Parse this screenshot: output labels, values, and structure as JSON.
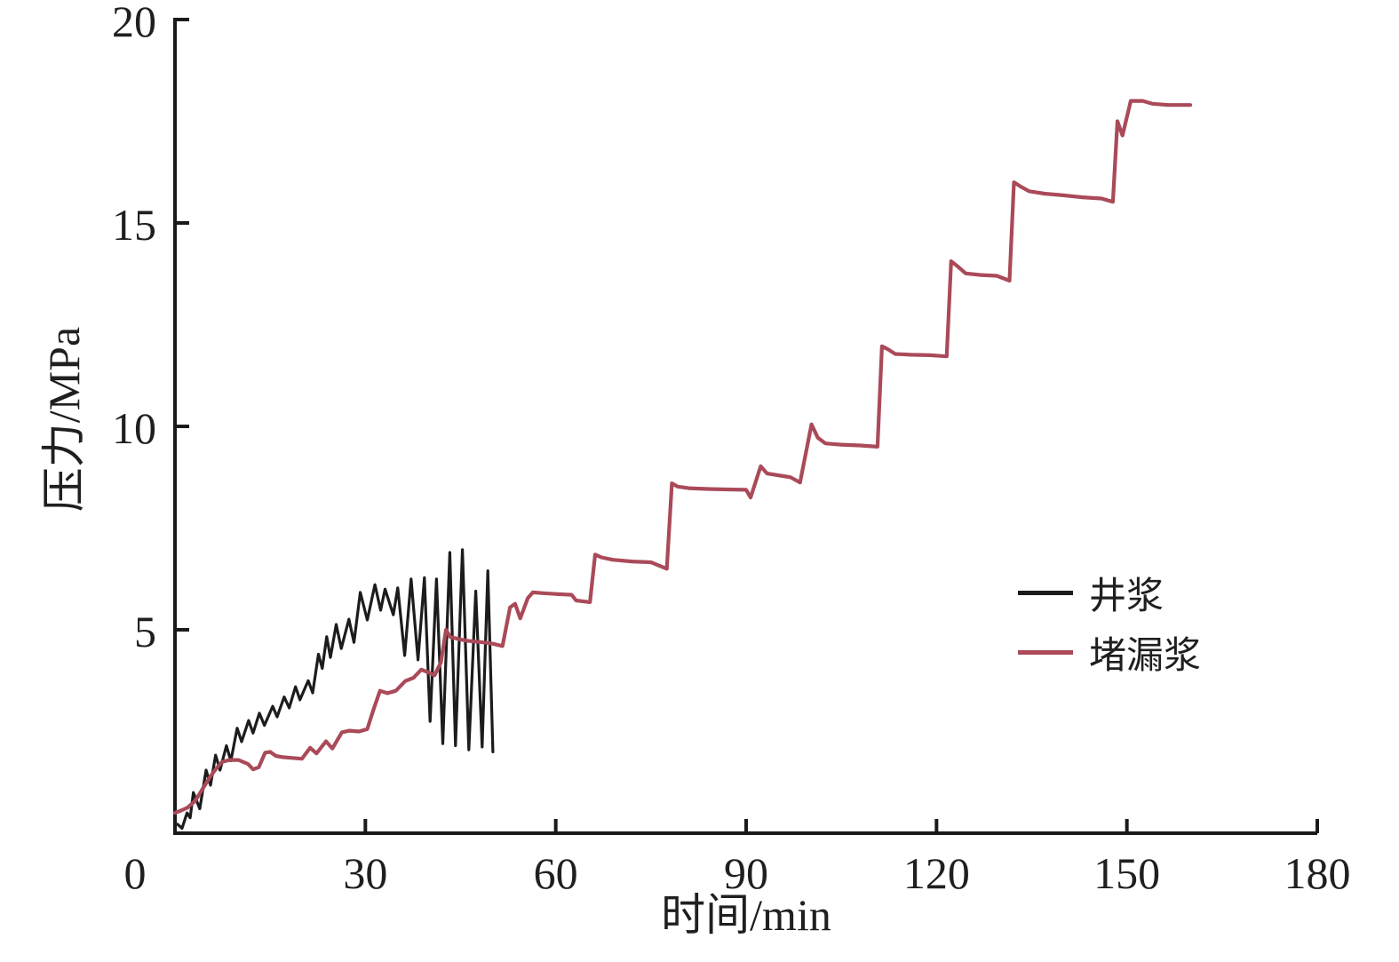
{
  "chart_data": {
    "type": "line",
    "title": "",
    "xlabel": "时间/min",
    "ylabel": "压力/MPa",
    "xlim": [
      0,
      180
    ],
    "ylim": [
      0,
      20
    ],
    "xticks": [
      0,
      30,
      60,
      90,
      120,
      150,
      180
    ],
    "yticks": [
      5,
      10,
      15,
      20
    ],
    "grid": false,
    "axis_color": "#1a1a1a",
    "legend_position": "right-middle",
    "series": [
      {
        "name": "井浆",
        "color": "#1c1c1c",
        "width": 3.2,
        "points": [
          [
            0.4,
            0.22
          ],
          [
            1.1,
            0.12
          ],
          [
            1.9,
            0.5
          ],
          [
            2.4,
            0.38
          ],
          [
            2.9,
            1.0
          ],
          [
            3.9,
            0.6
          ],
          [
            4.9,
            1.55
          ],
          [
            5.6,
            1.18
          ],
          [
            6.4,
            1.92
          ],
          [
            7.1,
            1.55
          ],
          [
            8.1,
            2.15
          ],
          [
            8.8,
            1.78
          ],
          [
            9.8,
            2.58
          ],
          [
            10.5,
            2.25
          ],
          [
            11.6,
            2.77
          ],
          [
            12.3,
            2.46
          ],
          [
            13.3,
            2.95
          ],
          [
            14.1,
            2.65
          ],
          [
            15.4,
            3.12
          ],
          [
            16.1,
            2.86
          ],
          [
            17.2,
            3.35
          ],
          [
            18.0,
            3.08
          ],
          [
            19.0,
            3.6
          ],
          [
            19.7,
            3.28
          ],
          [
            21.0,
            3.75
          ],
          [
            21.7,
            3.45
          ],
          [
            22.6,
            4.4
          ],
          [
            23.2,
            4.05
          ],
          [
            23.9,
            4.83
          ],
          [
            24.5,
            4.32
          ],
          [
            25.4,
            5.13
          ],
          [
            26.2,
            4.54
          ],
          [
            27.4,
            5.26
          ],
          [
            28.2,
            4.69
          ],
          [
            29.2,
            5.92
          ],
          [
            30.3,
            5.24
          ],
          [
            31.5,
            6.11
          ],
          [
            32.4,
            5.48
          ],
          [
            33.1,
            6.0
          ],
          [
            34.4,
            5.37
          ],
          [
            35.1,
            6.03
          ],
          [
            36.2,
            4.37
          ],
          [
            37.2,
            6.25
          ],
          [
            38.3,
            4.26
          ],
          [
            39.3,
            6.28
          ],
          [
            40.2,
            2.75
          ],
          [
            41.2,
            6.25
          ],
          [
            42.2,
            2.2
          ],
          [
            43.3,
            6.9
          ],
          [
            44.2,
            2.15
          ],
          [
            45.3,
            6.97
          ],
          [
            46.3,
            2.05
          ],
          [
            47.4,
            5.95
          ],
          [
            48.4,
            2.12
          ],
          [
            49.3,
            6.45
          ],
          [
            50.1,
            2.0
          ]
        ]
      },
      {
        "name": "堵漏浆",
        "color": "#aa4a59",
        "width": 4.2,
        "points": [
          [
            0,
            0.5
          ],
          [
            1,
            0.56
          ],
          [
            2,
            0.63
          ],
          [
            3.2,
            0.8
          ],
          [
            4.2,
            1.05
          ],
          [
            5.3,
            1.33
          ],
          [
            6.3,
            1.55
          ],
          [
            7.4,
            1.75
          ],
          [
            8.5,
            1.8
          ],
          [
            10,
            1.8
          ],
          [
            11.5,
            1.7
          ],
          [
            12.3,
            1.57
          ],
          [
            13.2,
            1.62
          ],
          [
            14.2,
            1.98
          ],
          [
            15,
            2.0
          ],
          [
            15.9,
            1.9
          ],
          [
            17,
            1.87
          ],
          [
            18.5,
            1.85
          ],
          [
            20,
            1.83
          ],
          [
            21.3,
            2.1
          ],
          [
            22.3,
            1.96
          ],
          [
            23.8,
            2.26
          ],
          [
            24.8,
            2.08
          ],
          [
            26.3,
            2.48
          ],
          [
            27.5,
            2.52
          ],
          [
            29,
            2.5
          ],
          [
            30.3,
            2.56
          ],
          [
            31.2,
            3.0
          ],
          [
            32.3,
            3.5
          ],
          [
            33.5,
            3.44
          ],
          [
            34.8,
            3.5
          ],
          [
            36.3,
            3.74
          ],
          [
            37.6,
            3.82
          ],
          [
            38.8,
            4.02
          ],
          [
            40,
            3.95
          ],
          [
            40.9,
            3.88
          ],
          [
            41.9,
            4.2
          ],
          [
            42.7,
            5.0
          ],
          [
            43.4,
            4.82
          ],
          [
            44.5,
            4.78
          ],
          [
            46,
            4.73
          ],
          [
            48,
            4.7
          ],
          [
            50,
            4.66
          ],
          [
            51.6,
            4.6
          ],
          [
            52.8,
            5.55
          ],
          [
            53.6,
            5.64
          ],
          [
            54.4,
            5.28
          ],
          [
            55.6,
            5.78
          ],
          [
            56.4,
            5.92
          ],
          [
            58,
            5.9
          ],
          [
            60,
            5.88
          ],
          [
            62.5,
            5.86
          ],
          [
            63.2,
            5.72
          ],
          [
            65.4,
            5.68
          ],
          [
            66.2,
            6.85
          ],
          [
            67.2,
            6.78
          ],
          [
            69,
            6.72
          ],
          [
            72,
            6.68
          ],
          [
            75,
            6.66
          ],
          [
            77.5,
            6.5
          ],
          [
            78.3,
            8.6
          ],
          [
            79.2,
            8.52
          ],
          [
            81,
            8.48
          ],
          [
            84,
            8.46
          ],
          [
            87,
            8.45
          ],
          [
            90,
            8.44
          ],
          [
            90.7,
            8.25
          ],
          [
            92.3,
            9.02
          ],
          [
            93.3,
            8.84
          ],
          [
            95,
            8.8
          ],
          [
            97,
            8.75
          ],
          [
            98.5,
            8.62
          ],
          [
            100.3,
            10.05
          ],
          [
            101.3,
            9.72
          ],
          [
            102.5,
            9.58
          ],
          [
            105,
            9.55
          ],
          [
            108,
            9.53
          ],
          [
            110.7,
            9.5
          ],
          [
            111.4,
            11.97
          ],
          [
            112.3,
            11.9
          ],
          [
            113.5,
            11.78
          ],
          [
            116,
            11.76
          ],
          [
            119,
            11.75
          ],
          [
            121.6,
            11.72
          ],
          [
            122.3,
            14.06
          ],
          [
            123.2,
            13.95
          ],
          [
            124.6,
            13.76
          ],
          [
            127,
            13.72
          ],
          [
            129.5,
            13.7
          ],
          [
            131.5,
            13.58
          ],
          [
            132.2,
            16.0
          ],
          [
            133.2,
            15.9
          ],
          [
            134.6,
            15.78
          ],
          [
            137,
            15.72
          ],
          [
            140,
            15.68
          ],
          [
            143,
            15.63
          ],
          [
            146,
            15.6
          ],
          [
            147.8,
            15.52
          ],
          [
            148.5,
            17.5
          ],
          [
            149.3,
            17.15
          ],
          [
            150.6,
            18.0
          ],
          [
            152.5,
            18.0
          ],
          [
            154,
            17.93
          ],
          [
            156.5,
            17.9
          ],
          [
            160,
            17.9
          ]
        ]
      }
    ]
  }
}
